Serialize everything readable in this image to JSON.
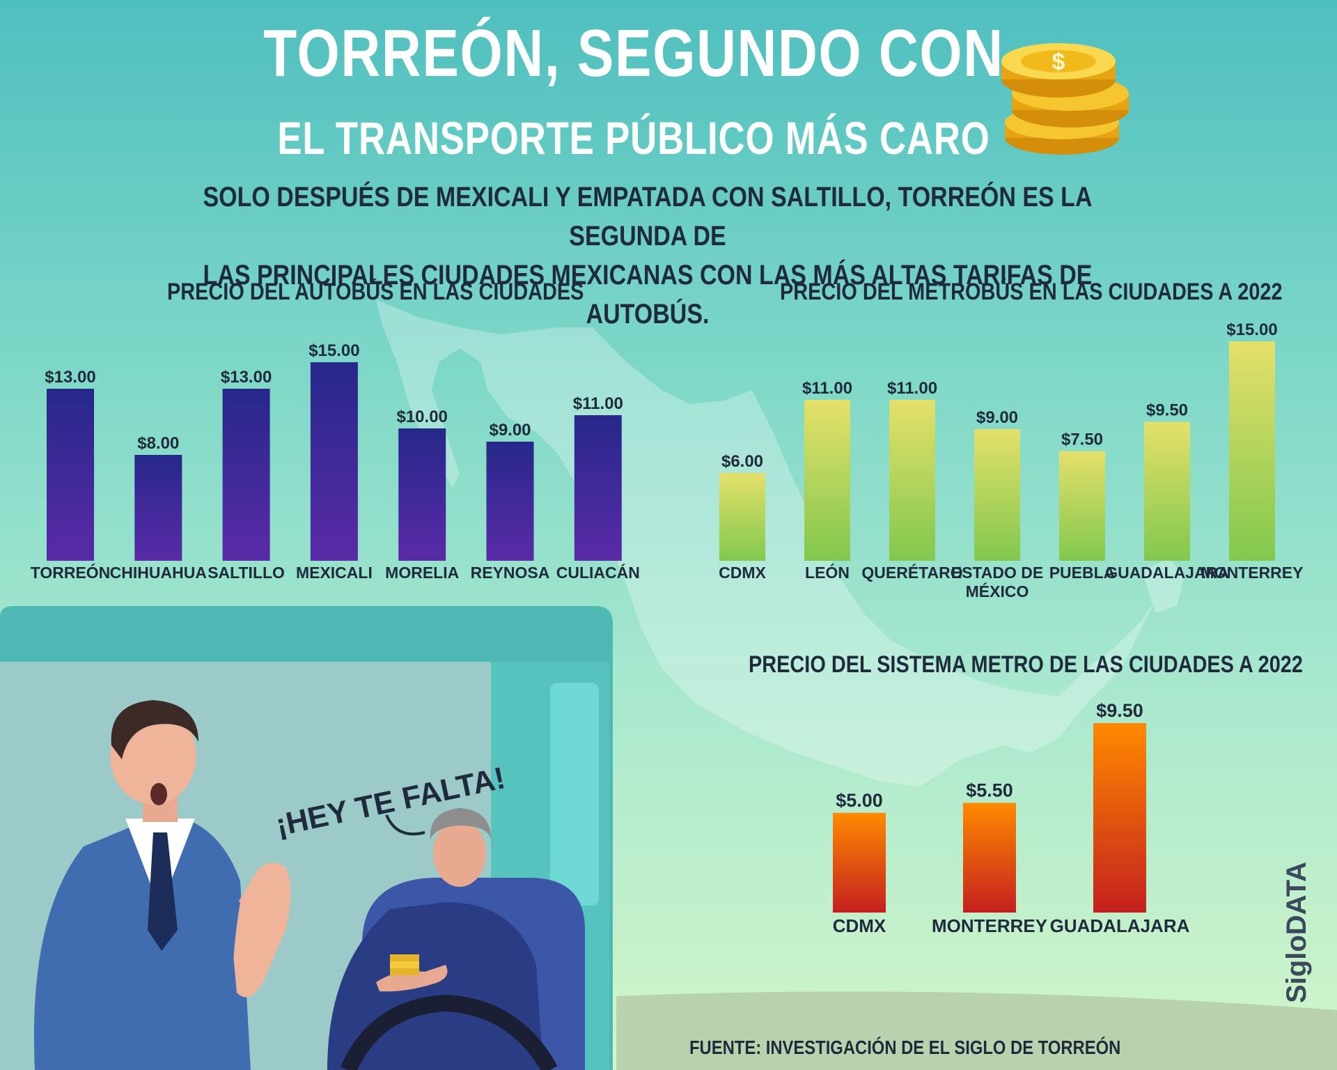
{
  "title": "TORREÓN, SEGUNDO CON",
  "subtitle": "EL TRANSPORTE PÚBLICO MÁS CARO",
  "intro_line1": "SOLO DESPUÉS DE MEXICALI Y EMPATADA CON SALTILLO, TORREÓN ES LA SEGUNDA DE",
  "intro_line2": "LAS PRINCIPALES CIUDADES MEXICANAS CON LAS MÁS ALTAS TARIFAS DE AUTOBÚS.",
  "speech_bubble": "¡HEY TE FALTA!",
  "source": "FUENTE: INVESTIGACIÓN DE EL SIGLO DE TORREÓN",
  "brand": "SigloDATA",
  "icons": [
    "gold-coins-icon",
    "mexico-map-icon",
    "bus-scene-illustration"
  ],
  "colors": {
    "bus_bar_top": "#27288a",
    "bus_bar_bottom": "#5a2aa8",
    "metrobus_bar_top": "#e4e06a",
    "metrobus_bar_bottom": "#82c84e",
    "metro_bar_top": "#ff8a00",
    "metro_bar_bottom": "#c4201e"
  },
  "chart_data": [
    {
      "type": "bar",
      "title": "PRECIO DEL AUTOBÚS EN LAS CIUDADES",
      "categories": [
        "TORREÓN",
        "CHIHUAHUA",
        "SALTILLO",
        "MEXICALI",
        "MORELIA",
        "REYNOSA",
        "CULIACÁN"
      ],
      "values": [
        13,
        8,
        13,
        15,
        10,
        9,
        11
      ],
      "value_labels": [
        "$13.00",
        "$8.00",
        "$13.00",
        "$15.00",
        "$10.00",
        "$9.00",
        "$11.00"
      ],
      "ylim": [
        0,
        15
      ]
    },
    {
      "type": "bar",
      "title": "PRECIO DEL METROBÚS EN LAS CIUDADES A 2022",
      "categories": [
        "CDMX",
        "LEÓN",
        "QUERÉTARO",
        "ESTADO DE MÉXICO",
        "PUEBLA",
        "GUADALAJARA",
        "MONTERREY"
      ],
      "values": [
        6,
        11,
        11,
        9,
        7.5,
        9.5,
        15
      ],
      "value_labels": [
        "$6.00",
        "$11.00",
        "$11.00",
        "$9.00",
        "$7.50",
        "$9.50",
        "$15.00"
      ],
      "ylim": [
        0,
        15
      ]
    },
    {
      "type": "bar",
      "title": "PRECIO DEL SISTEMA METRO DE LAS CIUDADES A 2022",
      "categories": [
        "CDMX",
        "MONTERREY",
        "GUADALAJARA"
      ],
      "values": [
        5,
        5.5,
        9.5
      ],
      "value_labels": [
        "$5.00",
        "$5.50",
        "$9.50"
      ],
      "ylim": [
        0,
        9.5
      ]
    }
  ]
}
